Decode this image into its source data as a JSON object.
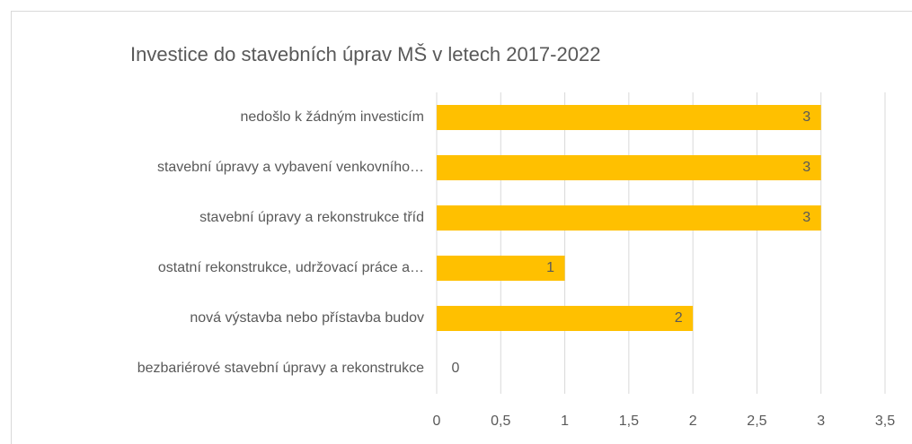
{
  "chart_data": {
    "type": "bar",
    "orientation": "horizontal",
    "title": "Investice do stavebních úprav MŠ v letech 2017-2022",
    "categories": [
      "nedošlo k žádným investicím",
      "stavební úpravy a vybavení  venkovního…",
      "stavební úpravy a rekonstrukce tříd",
      "ostatní rekonstrukce, udržovací práce a…",
      "nová výstavba nebo přístavba budov",
      "bezbariérové stavební úpravy a rekonstrukce"
    ],
    "values": [
      3,
      3,
      3,
      1,
      2,
      0
    ],
    "color": "#ffc000",
    "xlim": [
      0,
      3.5
    ],
    "xticks": [
      0,
      {
        "value": 0.5,
        "label": "0,5"
      },
      1,
      {
        "value": 1.5,
        "label": "1,5"
      },
      2,
      {
        "value": 2.5,
        "label": "2,5"
      },
      3,
      {
        "value": 3.5,
        "label": "3,5"
      }
    ],
    "grid": true
  }
}
